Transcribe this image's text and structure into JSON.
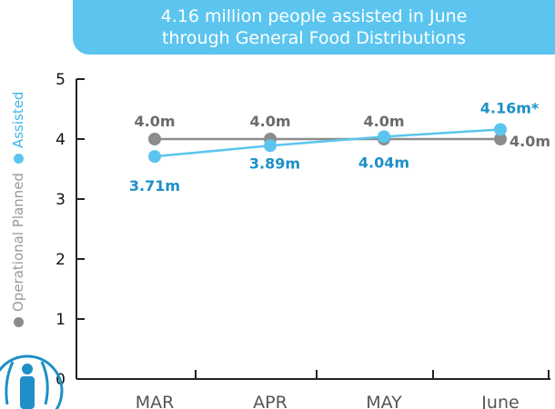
{
  "title": {
    "line1": "4.16 million people assisted in June",
    "line2": "through General Food Distributions"
  },
  "legend": {
    "planned": "Operational Planned",
    "assisted": "Assisted"
  },
  "colors": {
    "planned": "#8c8c8c",
    "assisted": "#5bc5ef",
    "banner": "#5bc5ef"
  },
  "chart_data": {
    "type": "line",
    "categories": [
      "MAR",
      "APR",
      "MAY",
      "June"
    ],
    "ylim": [
      0,
      5
    ],
    "yticks": [
      0,
      1,
      2,
      3,
      4,
      5
    ],
    "series": [
      {
        "name": "Operational Planned",
        "values": [
          4.0,
          4.0,
          4.0,
          4.0
        ],
        "labels": [
          "4.0m",
          "4.0m",
          "4.0m",
          "4.0m"
        ]
      },
      {
        "name": "Assisted",
        "values": [
          3.71,
          3.89,
          4.04,
          4.16
        ],
        "labels": [
          "3.71m",
          "3.89m",
          "4.04m",
          "4.16m*"
        ]
      }
    ]
  }
}
